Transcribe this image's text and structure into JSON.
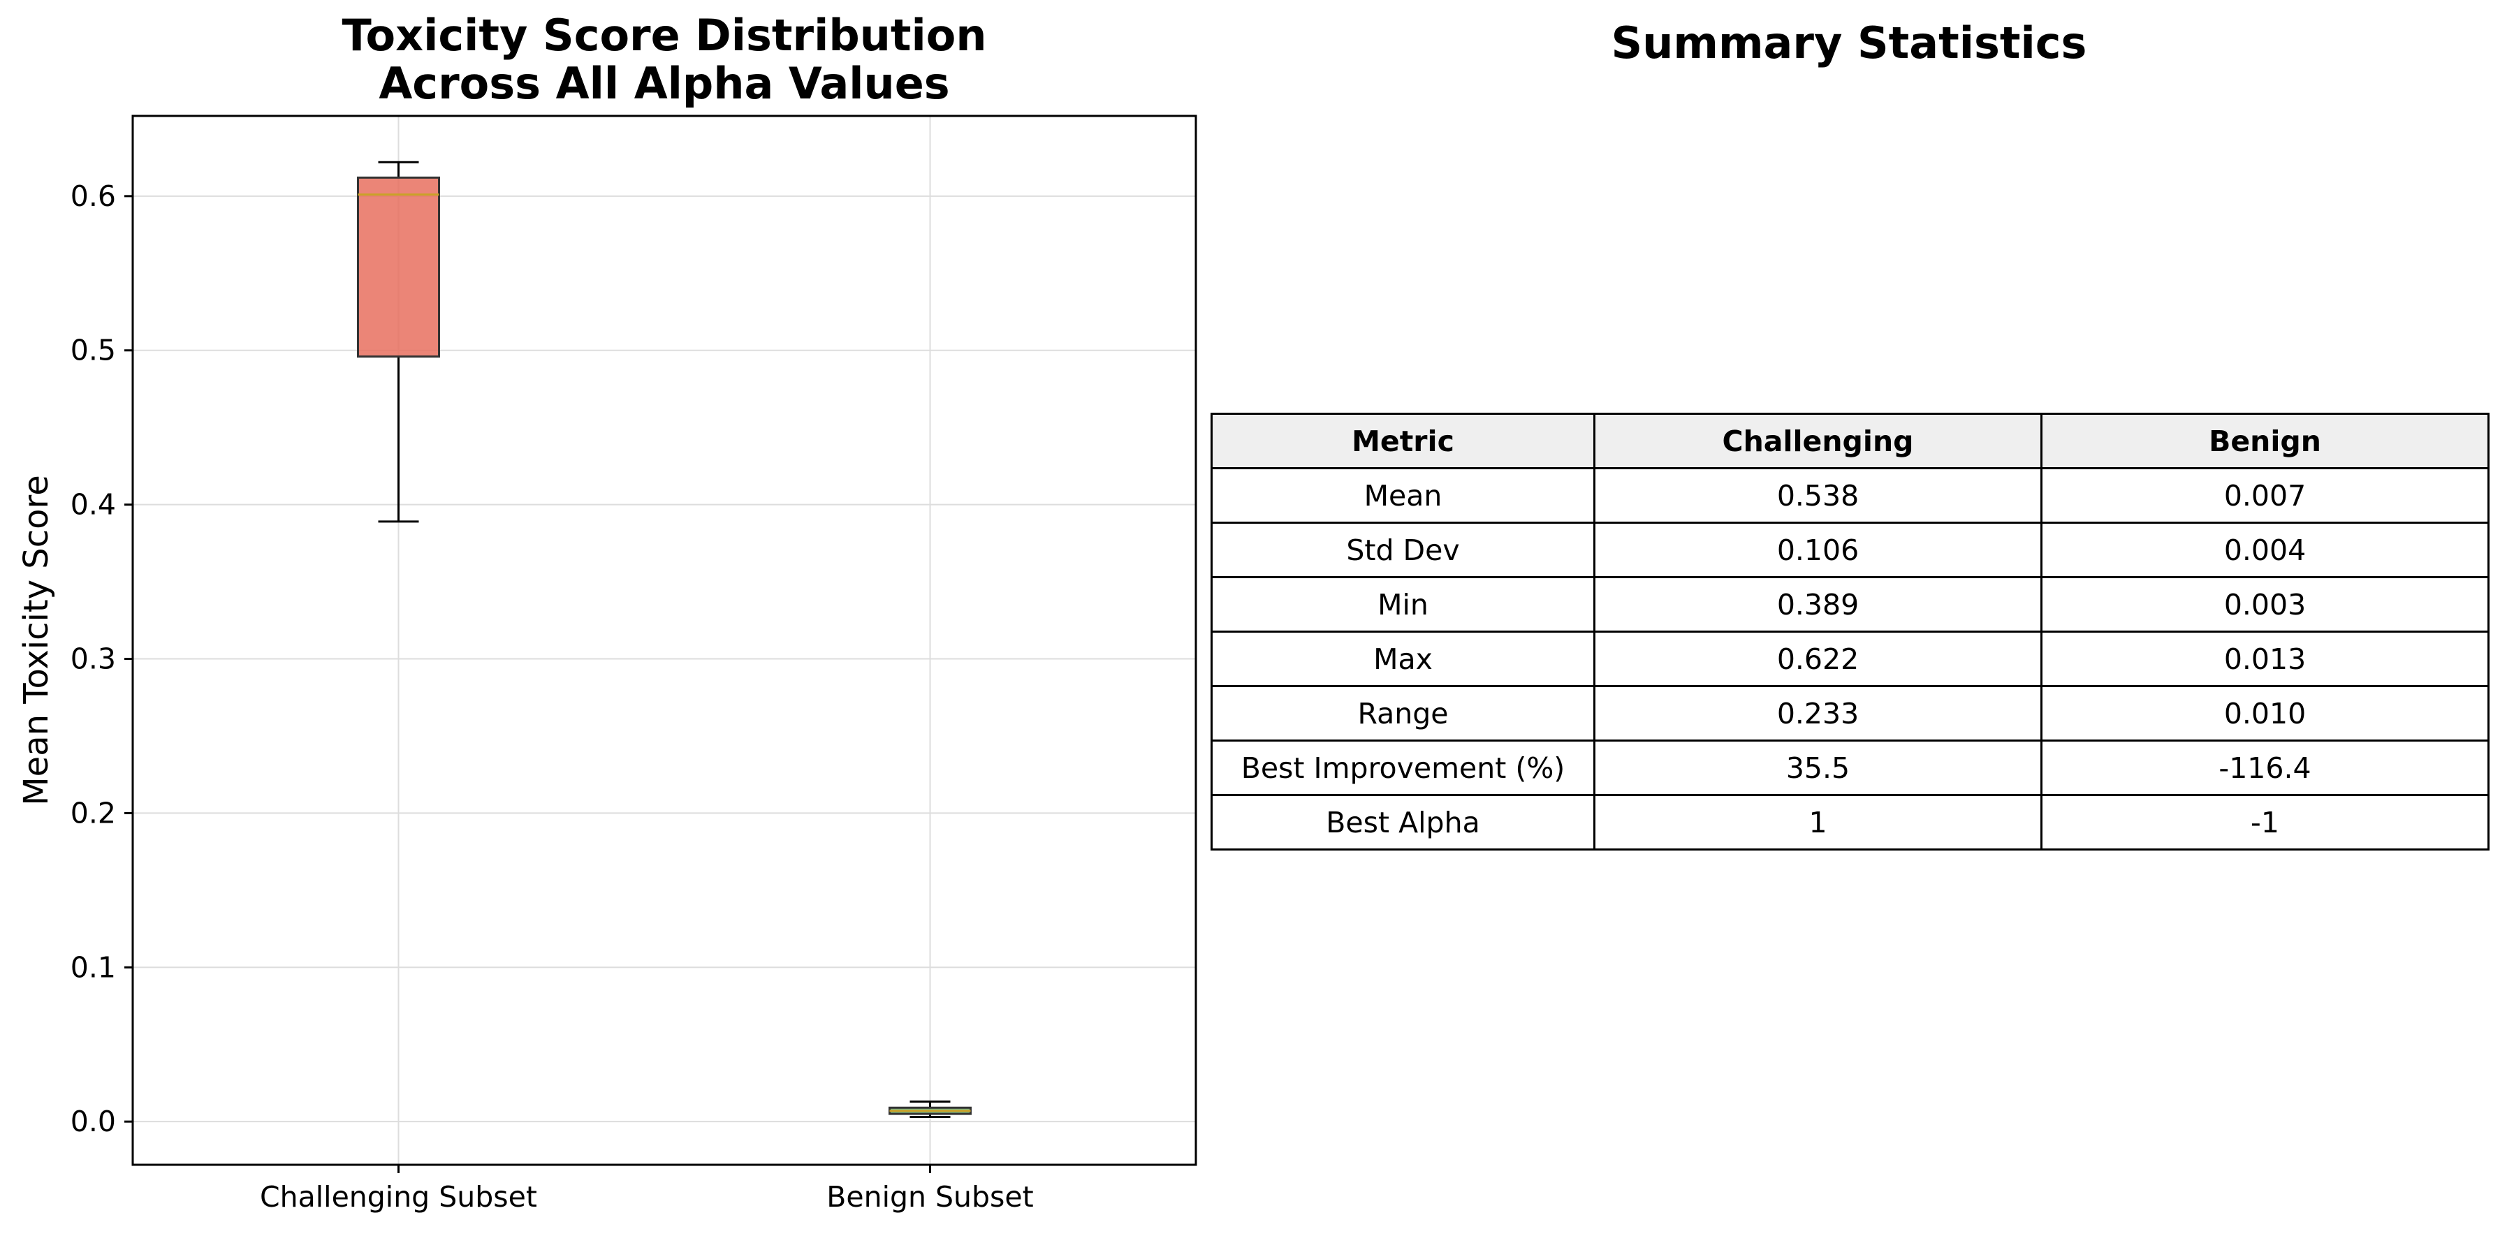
{
  "chart_data": [
    {
      "type": "box",
      "title_lines": [
        "Toxicity Score Distribution",
        "Across All Alpha Values"
      ],
      "xlabel": "",
      "ylabel": "Mean Toxicity Score",
      "ylim": [
        -0.028,
        0.652
      ],
      "yticks": [
        0.0,
        0.1,
        0.2,
        0.3,
        0.4,
        0.5,
        0.6
      ],
      "ytick_labels": [
        "0.0",
        "0.1",
        "0.2",
        "0.3",
        "0.4",
        "0.5",
        "0.6"
      ],
      "grid": true,
      "categories": [
        "Challenging Subset",
        "Benign Subset"
      ],
      "boxes": [
        {
          "name": "Challenging Subset",
          "whisker_low": 0.389,
          "q1": 0.496,
          "median": 0.601,
          "q3": 0.612,
          "whisker_high": 0.622,
          "color": "#e8705f"
        },
        {
          "name": "Benign Subset",
          "whisker_low": 0.003,
          "q1": 0.005,
          "median": 0.007,
          "q3": 0.009,
          "whisker_high": 0.013,
          "color": "#6aa86a"
        }
      ],
      "median_color": "#c9a227"
    },
    {
      "type": "table",
      "title": "Summary Statistics",
      "columns": [
        "Metric",
        "Challenging",
        "Benign"
      ],
      "rows": [
        [
          "Mean",
          "0.538",
          "0.007"
        ],
        [
          "Std Dev",
          "0.106",
          "0.004"
        ],
        [
          "Min",
          "0.389",
          "0.003"
        ],
        [
          "Max",
          "0.622",
          "0.013"
        ],
        [
          "Range",
          "0.233",
          "0.010"
        ],
        [
          "Best Improvement (%)",
          "35.5",
          "-116.4"
        ],
        [
          "Best Alpha",
          "1",
          "-1"
        ]
      ],
      "header_bg": "#efefef"
    }
  ]
}
